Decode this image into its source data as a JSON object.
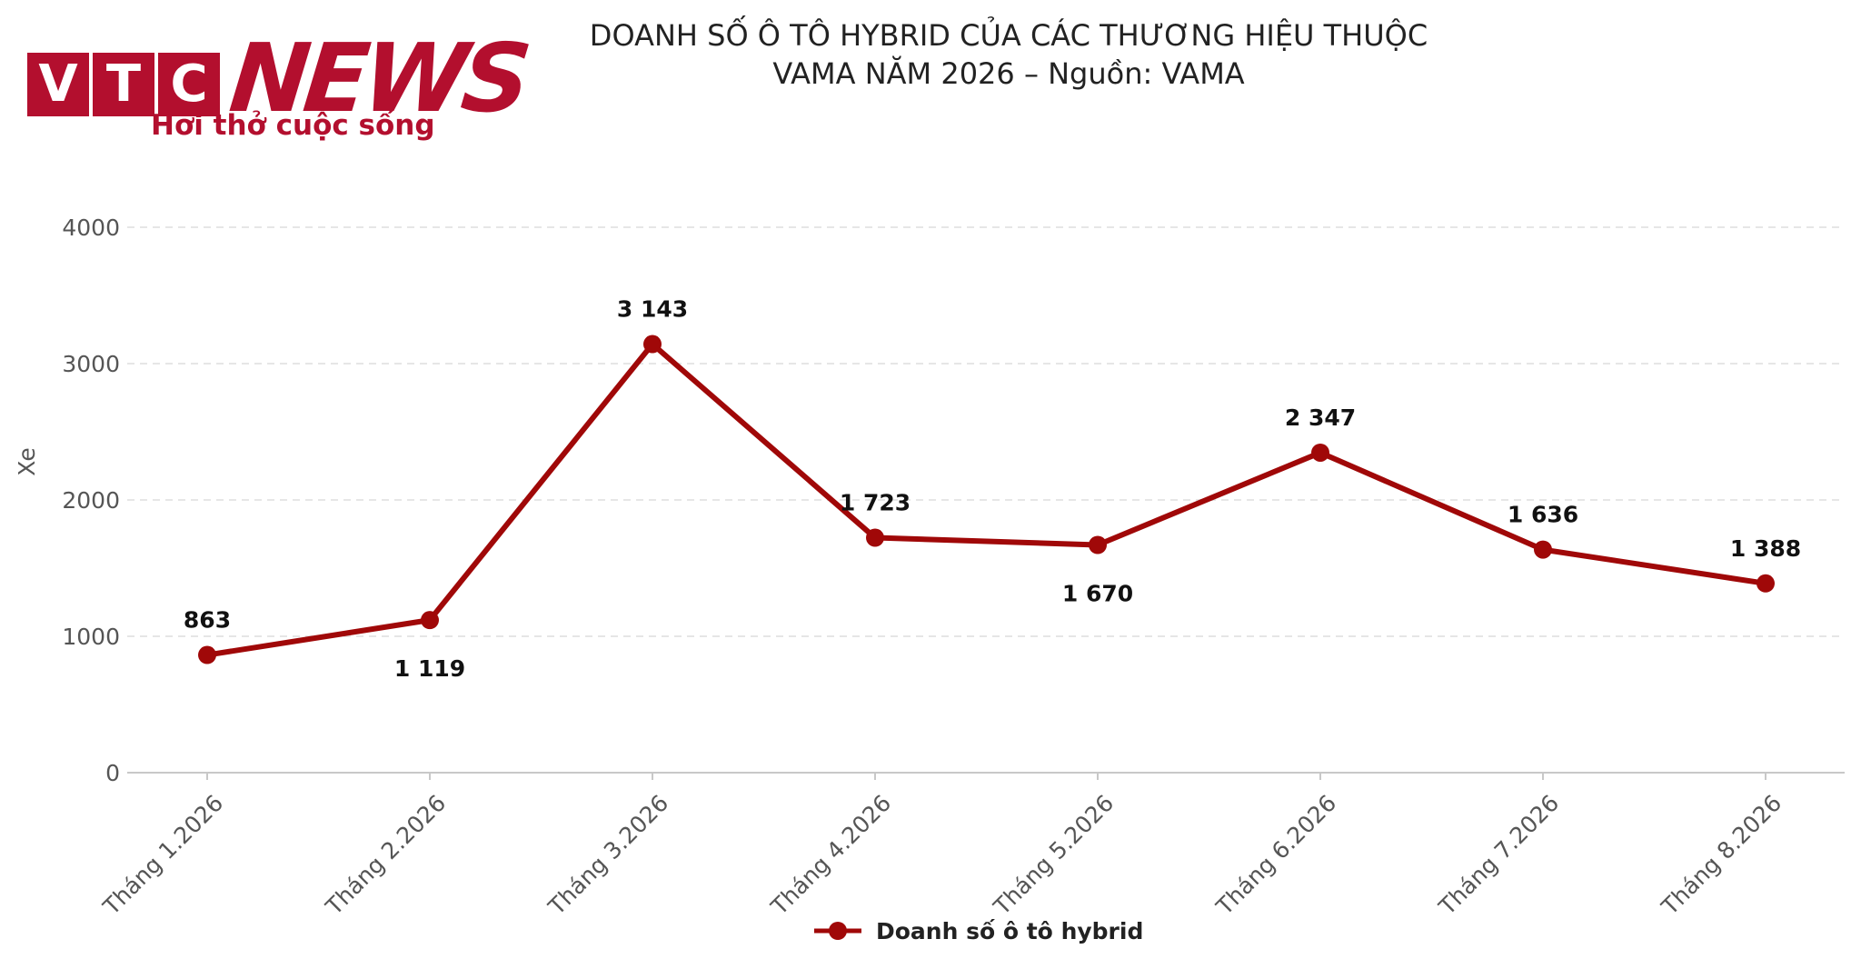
{
  "brand": {
    "vtc_letters": [
      "V",
      "T",
      "C"
    ],
    "news": "NEWS",
    "slogan": "Hơi thở cuộc sống",
    "color": "#b30f2e"
  },
  "chart_data": {
    "type": "line",
    "title_lines": [
      "DOANH SỐ Ô TÔ HYBRID CỦA CÁC THƯƠNG HIỆU THUỘC",
      "VAMA NĂM 2026 – Nguồn: VAMA"
    ],
    "xlabel": "",
    "ylabel": "Xe",
    "ylim": [
      0,
      4000
    ],
    "yticks": [
      0,
      1000,
      2000,
      3000,
      4000
    ],
    "grid": true,
    "legend_position": "bottom-center",
    "categories": [
      "Tháng 1.2026",
      "Tháng 2.2026",
      "Tháng 3.2026",
      "Tháng 4.2026",
      "Tháng 5.2026",
      "Tháng 6.2026",
      "Tháng 7.2026",
      "Tháng 8.2026"
    ],
    "series": [
      {
        "name": "Doanh số ô tô hybrid",
        "color": "#a00808",
        "values": [
          863,
          1119,
          3143,
          1723,
          1670,
          2347,
          1636,
          1388
        ],
        "data_labels": [
          "863",
          "1 119",
          "3 143",
          "1 723",
          "1 670",
          "2 347",
          "1 636",
          "1 388"
        ],
        "label_positions": [
          "above",
          "below",
          "above",
          "above",
          "below",
          "above",
          "above",
          "above"
        ]
      }
    ]
  }
}
